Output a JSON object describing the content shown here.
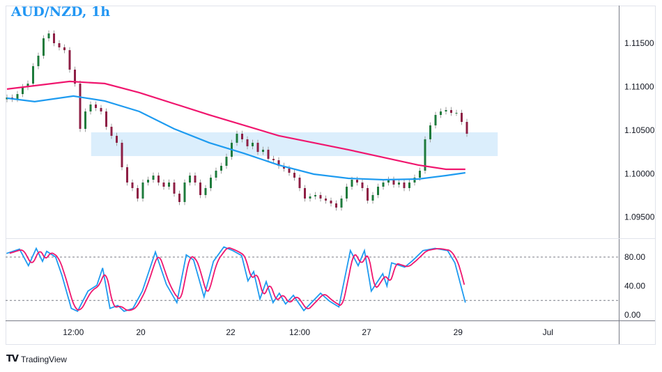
{
  "header": {
    "title": "AUD/NZD, 1h"
  },
  "branding": {
    "logo_text": "TradingView",
    "logo_mark": "TV"
  },
  "colors": {
    "bull": "#1e7b3c",
    "bear": "#8e1f45",
    "wick": "#9e9e9e",
    "ma_slow": "#f0166e",
    "ma_fast": "#1e9bf0",
    "zone": "#dbeefc",
    "stoch_k": "#1e9bf0",
    "stoch_d": "#f0166e",
    "title": "#2196f3"
  },
  "chart_data": [
    {
      "type": "candlestick",
      "title": "AUD/NZD, 1h",
      "ylim": [
        1.0925,
        1.1205
      ],
      "y_ticks": [
        1.115,
        1.11,
        1.105,
        1.1,
        1.095
      ],
      "y_tick_labels": [
        "1.11500",
        "1.11000",
        "1.10500",
        "1.10000",
        "1.09500"
      ],
      "x_ticks": [
        {
          "label": "12:00",
          "index": 12.7
        },
        {
          "label": "20",
          "index": 25.6
        },
        {
          "label": "22",
          "index": 42.8
        },
        {
          "label": "12:00",
          "index": 56
        },
        {
          "label": "27",
          "index": 68.8
        },
        {
          "label": "29",
          "index": 86.3
        },
        {
          "label": "Jul",
          "index": 103.5
        }
      ],
      "closes": [
        1.10875,
        1.10859,
        1.10915,
        1.10995,
        1.11035,
        1.11236,
        1.11356,
        1.11556,
        1.11612,
        1.115,
        1.11452,
        1.1142,
        1.11196,
        1.11035,
        1.10515,
        1.10715,
        1.10795,
        1.10755,
        1.10715,
        1.10539,
        1.10435,
        1.10355,
        1.10074,
        1.09898,
        1.09834,
        1.09714,
        1.09898,
        1.0993,
        1.09978,
        1.09898,
        1.0985,
        1.09898,
        1.0977,
        1.09674,
        1.09898,
        1.09978,
        1.09898,
        1.09754,
        1.09834,
        1.09954,
        1.10034,
        1.1009,
        1.10194,
        1.10355,
        1.10459,
        1.10395,
        1.10315,
        1.10355,
        1.1025,
        1.10275,
        1.1017,
        1.10154,
        1.1009,
        1.10058,
        1.1001,
        1.09954,
        1.09834,
        1.09714,
        1.09738,
        1.09754,
        1.09714,
        1.0969,
        1.09658,
        1.0961,
        1.09714,
        1.0985,
        1.0993,
        1.09898,
        1.09834,
        1.0969,
        1.09754,
        1.0985,
        1.09898,
        1.0993,
        1.09874,
        1.09898,
        1.09834,
        1.09898,
        1.09954,
        1.10034,
        1.10395,
        1.10555,
        1.10675,
        1.10715,
        1.10731,
        1.10699,
        1.10699,
        1.10595,
        1.10459
      ],
      "ma_slow": [
        [
          0,
          1.10972
        ],
        [
          12,
          1.1106
        ],
        [
          18.7,
          1.11036
        ],
        [
          25.3,
          1.10932
        ],
        [
          38.7,
          1.10676
        ],
        [
          52,
          1.10436
        ],
        [
          65.3,
          1.10275
        ],
        [
          78.7,
          1.10099
        ],
        [
          84,
          1.1005
        ],
        [
          87.7,
          1.1005
        ]
      ],
      "ma_fast": [
        [
          0,
          1.10868
        ],
        [
          5.3,
          1.10828
        ],
        [
          12.7,
          1.10892
        ],
        [
          18.7,
          1.10836
        ],
        [
          25.3,
          1.10715
        ],
        [
          32,
          1.10515
        ],
        [
          38.7,
          1.10355
        ],
        [
          45.3,
          1.10234
        ],
        [
          52,
          1.10099
        ],
        [
          58.7,
          1.09994
        ],
        [
          65.3,
          1.09946
        ],
        [
          72,
          1.0993
        ],
        [
          78.7,
          1.09938
        ],
        [
          84,
          1.09978
        ],
        [
          87.7,
          1.1001
        ]
      ],
      "zone": {
        "from_index": 16.1,
        "to_index": 93.9,
        "price_high": 1.10475,
        "price_low": 1.10202
      }
    },
    {
      "type": "line",
      "ylim": [
        0,
        100
      ],
      "y_ticks": [
        80,
        40,
        0
      ],
      "y_tick_labels": [
        "80.00",
        "40.00",
        "0.00"
      ],
      "levels": [
        80,
        20
      ],
      "k": [
        [
          -0.1,
          85
        ],
        [
          2.4,
          91
        ],
        [
          4.1,
          68
        ],
        [
          5.6,
          92
        ],
        [
          6.8,
          74
        ],
        [
          7.6,
          88
        ],
        [
          9.3,
          80
        ],
        [
          10.5,
          55
        ],
        [
          12.3,
          9
        ],
        [
          13.5,
          5
        ],
        [
          15.5,
          33
        ],
        [
          17.2,
          41
        ],
        [
          18.3,
          65
        ],
        [
          19.7,
          9
        ],
        [
          21.2,
          13
        ],
        [
          22.4,
          5
        ],
        [
          24.1,
          9
        ],
        [
          25.9,
          33
        ],
        [
          28.4,
          87
        ],
        [
          30.5,
          42
        ],
        [
          32.5,
          17
        ],
        [
          34.3,
          83
        ],
        [
          35.7,
          76
        ],
        [
          37.7,
          25
        ],
        [
          39.5,
          74
        ],
        [
          41.5,
          94
        ],
        [
          43.2,
          89
        ],
        [
          44.9,
          82
        ],
        [
          46.1,
          47
        ],
        [
          47.2,
          60
        ],
        [
          48.4,
          22
        ],
        [
          49.6,
          46
        ],
        [
          50.9,
          17
        ],
        [
          52.1,
          30
        ],
        [
          53.3,
          15
        ],
        [
          54.8,
          27
        ],
        [
          56.8,
          6
        ],
        [
          60,
          30
        ],
        [
          61.7,
          19
        ],
        [
          63.5,
          11
        ],
        [
          65.7,
          89
        ],
        [
          67.2,
          68
        ],
        [
          68.4,
          89
        ],
        [
          69.7,
          33
        ],
        [
          71.9,
          57
        ],
        [
          72.7,
          40
        ],
        [
          73.6,
          72
        ],
        [
          76.1,
          66
        ],
        [
          77.6,
          75
        ],
        [
          79.6,
          89
        ],
        [
          81.9,
          92
        ],
        [
          84.3,
          89
        ],
        [
          85.7,
          72
        ],
        [
          86.5,
          50
        ],
        [
          87.7,
          17
        ]
      ]
    }
  ]
}
